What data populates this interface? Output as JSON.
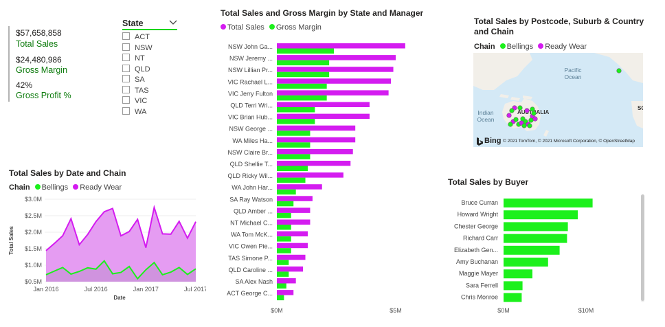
{
  "kpi": {
    "total_sales_value": "$57,658,858",
    "total_sales_label": "Total Sales",
    "gross_margin_value": "$24,480,986",
    "gross_margin_label": "Gross Margin",
    "gross_profit_pct_value": "42%",
    "gross_profit_pct_label": "Gross Profit %"
  },
  "slicer": {
    "title": "State",
    "options": [
      "ACT",
      "NSW",
      "NT",
      "QLD",
      "SA",
      "TAS",
      "VIC",
      "WA"
    ]
  },
  "colors": {
    "magenta": "#d41cf0",
    "green": "#1cf01c",
    "area_fill": "#e59cf2",
    "kpi_label": "#0b7a0b"
  },
  "manager_chart": {
    "title": "Total Sales and Gross Margin by State and Manager",
    "legend": [
      "Total Sales",
      "Gross Margin"
    ]
  },
  "date_chart": {
    "title": "Total Sales by Date and Chain",
    "legend_head": "Chain",
    "legend": [
      "Bellings",
      "Ready Wear"
    ]
  },
  "map": {
    "title": "Total Sales by Postcode, Suburb & Country and Chain",
    "legend_head": "Chain",
    "legend": [
      "Bellings",
      "Ready Wear"
    ],
    "labels": {
      "pacific": "Pacific\nOcean",
      "indian": "Indian\nOcean",
      "australia": "AUSTRALIA",
      "south": "SOU"
    },
    "bing": "Bing",
    "attribution": "© 2021 TomTom, © 2021 Microsoft Corporation, © OpenStreetMap"
  },
  "buyer_chart": {
    "title": "Total Sales by Buyer"
  },
  "chart_data": [
    {
      "type": "bar",
      "orientation": "horizontal",
      "title": "Total Sales and Gross Margin by State and Manager",
      "categories": [
        "NSW John Ga...",
        "NSW Jeremy ...",
        "NSW Lillian Pr...",
        "VIC Rachael L...",
        "VIC Jerry Fulton",
        "QLD Terri Wri...",
        "VIC Brian Hub...",
        "NSW George ...",
        "WA Miles Ha...",
        "NSW Claire Br...",
        "QLD Shellie T...",
        "QLD Ricky Wil...",
        "WA John Har...",
        "SA Ray Watson",
        "QLD Amber ...",
        "NT Michael C...",
        "WA Tom McK...",
        "VIC Owen Pie...",
        "TAS Simone P...",
        "QLD Caroline ...",
        "SA Alex Nash",
        "ACT George C..."
      ],
      "series": [
        {
          "name": "Total Sales",
          "values": [
            5.4,
            5.0,
            4.9,
            4.8,
            4.7,
            3.9,
            3.9,
            3.3,
            3.3,
            3.2,
            3.1,
            2.8,
            1.9,
            1.5,
            1.4,
            1.4,
            1.3,
            1.3,
            1.2,
            1.1,
            0.8,
            0.7
          ]
        },
        {
          "name": "Gross Margin",
          "values": [
            2.4,
            2.2,
            2.2,
            2.1,
            2.1,
            1.6,
            1.6,
            1.4,
            1.4,
            1.4,
            1.3,
            1.2,
            0.8,
            0.7,
            0.6,
            0.6,
            0.6,
            0.6,
            0.5,
            0.5,
            0.4,
            0.3
          ]
        }
      ],
      "x_ticks": [
        "$0M",
        "$5M"
      ],
      "xlim": [
        0,
        5.5
      ]
    },
    {
      "type": "area",
      "title": "Total Sales by Date and Chain",
      "xlabel": "Date",
      "ylabel": "Total Sales",
      "x": [
        "2016-01",
        "2016-02",
        "2016-03",
        "2016-04",
        "2016-05",
        "2016-06",
        "2016-07",
        "2016-08",
        "2016-09",
        "2016-10",
        "2016-11",
        "2016-12",
        "2017-01",
        "2017-02",
        "2017-03",
        "2017-04",
        "2017-05",
        "2017-06",
        "2017-07"
      ],
      "x_ticks": [
        "Jan 2016",
        "Jul 2016",
        "Jan 2017",
        "Jul 2017"
      ],
      "y_ticks": [
        "$0.5M",
        "$1.0M",
        "$1.5M",
        "$2.0M",
        "$2.5M",
        "$3.0M"
      ],
      "ylim": [
        0.5,
        3.0
      ],
      "series": [
        {
          "name": "Bellings",
          "values": [
            0.71,
            0.82,
            0.93,
            0.73,
            0.81,
            0.92,
            0.88,
            1.13,
            0.74,
            0.78,
            0.96,
            0.59,
            0.86,
            1.08,
            0.71,
            0.79,
            0.93,
            0.72,
            0.89
          ]
        },
        {
          "name": "Ready Wear",
          "values": [
            1.44,
            1.66,
            1.89,
            2.41,
            1.62,
            1.93,
            2.32,
            2.62,
            2.72,
            1.89,
            2.02,
            2.39,
            1.53,
            2.75,
            1.95,
            1.94,
            2.33,
            1.82,
            2.32
          ]
        }
      ]
    },
    {
      "type": "bar",
      "orientation": "horizontal",
      "title": "Total Sales by Buyer",
      "categories": [
        "Bruce Curran",
        "Howard Wright",
        "Chester George",
        "Richard Carr",
        "Elizabeth Gen...",
        "Amy Buchanan",
        "Maggie Mayer",
        "Sara Ferrell",
        "Chris Monroe"
      ],
      "values": [
        10.8,
        9.0,
        7.8,
        7.7,
        6.8,
        5.4,
        3.5,
        2.3,
        2.2
      ],
      "x_ticks": [
        "$0M",
        "$10M"
      ],
      "xlim": [
        0,
        12
      ]
    }
  ]
}
